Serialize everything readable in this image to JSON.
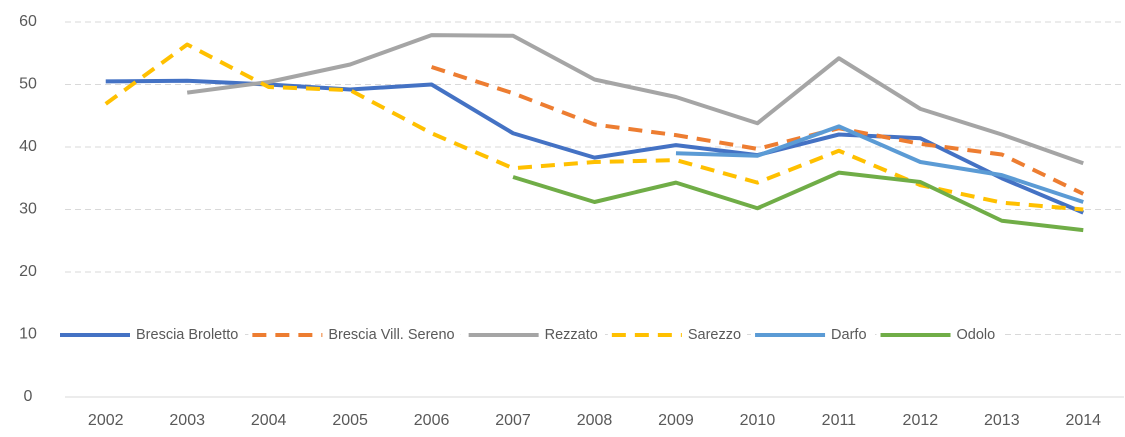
{
  "chart_data": {
    "type": "line",
    "categories": [
      "2002",
      "2003",
      "2004",
      "2005",
      "2006",
      "2007",
      "2008",
      "2009",
      "2010",
      "2011",
      "2012",
      "2013",
      "2014"
    ],
    "series": [
      {
        "name": "Brescia Broletto",
        "color": "#4472c4",
        "dashed": false,
        "values": [
          50.5,
          50.6,
          50.0,
          49.2,
          50.0,
          42.2,
          38.3,
          40.3,
          38.7,
          42.0,
          41.4,
          35.0,
          29.5
        ]
      },
      {
        "name": "Brescia Vill. Sereno",
        "color": "#ed7d31",
        "dashed": true,
        "values": [
          null,
          null,
          null,
          null,
          52.8,
          48.6,
          43.6,
          41.9,
          39.7,
          43.0,
          40.5,
          38.8,
          32.5
        ]
      },
      {
        "name": "Rezzato",
        "color": "#a5a5a5",
        "dashed": false,
        "values": [
          null,
          48.7,
          50.4,
          53.2,
          57.9,
          57.8,
          50.8,
          48.0,
          43.8,
          54.2,
          46.1,
          42.0,
          37.4
        ]
      },
      {
        "name": "Sarezzo",
        "color": "#ffc000",
        "dashed": true,
        "values": [
          46.9,
          56.4,
          49.6,
          49.1,
          42.2,
          36.6,
          37.6,
          37.9,
          34.3,
          39.4,
          33.9,
          31.1,
          30.0
        ]
      },
      {
        "name": "Darfo",
        "color": "#5b9bd5",
        "dashed": false,
        "values": [
          null,
          null,
          null,
          null,
          null,
          null,
          null,
          39.0,
          38.6,
          43.3,
          37.6,
          35.5,
          31.2
        ]
      },
      {
        "name": "Odolo",
        "color": "#70ad47",
        "dashed": false,
        "values": [
          null,
          null,
          null,
          null,
          null,
          35.2,
          31.2,
          34.3,
          30.2,
          35.9,
          34.4,
          28.2,
          26.7
        ]
      }
    ],
    "ylim": [
      0,
      60
    ],
    "yticks": [
      0,
      10,
      20,
      30,
      40,
      50,
      60
    ],
    "grid": true
  }
}
